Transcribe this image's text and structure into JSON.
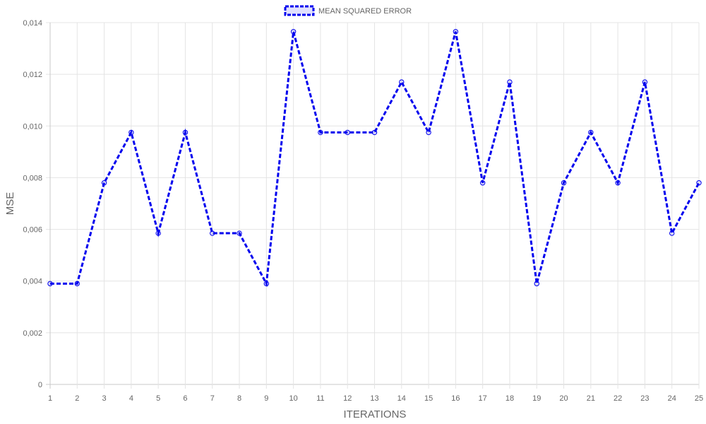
{
  "chart_data": {
    "type": "line",
    "xlabel": "ITERATIONS",
    "ylabel": "MSE",
    "categories": [
      "1",
      "2",
      "3",
      "4",
      "5",
      "6",
      "7",
      "8",
      "9",
      "10",
      "11",
      "12",
      "13",
      "14",
      "15",
      "16",
      "17",
      "18",
      "19",
      "20",
      "21",
      "22",
      "23",
      "24",
      "25"
    ],
    "series": [
      {
        "name": "MEAN SQUARED ERROR",
        "color": "#0000ee",
        "line_style": "dashed",
        "values": [
          0.0039,
          0.0039,
          0.0078,
          0.00975,
          0.00585,
          0.00975,
          0.00585,
          0.00585,
          0.0039,
          0.01365,
          0.00975,
          0.00975,
          0.00975,
          0.0117,
          0.00975,
          0.01365,
          0.0078,
          0.0117,
          0.0039,
          0.0078,
          0.00975,
          0.0078,
          0.0117,
          0.00585,
          0.0078
        ]
      }
    ],
    "ylim": [
      0,
      0.014
    ],
    "y_ticks": [
      0,
      0.002,
      0.004,
      0.006,
      0.008,
      0.01,
      0.012,
      0.014
    ],
    "y_tick_labels": [
      "0",
      "0,002",
      "0,004",
      "0,006",
      "0,008",
      "0,010",
      "0,012",
      "0,014"
    ],
    "grid": true,
    "legend_position": "top-center"
  }
}
